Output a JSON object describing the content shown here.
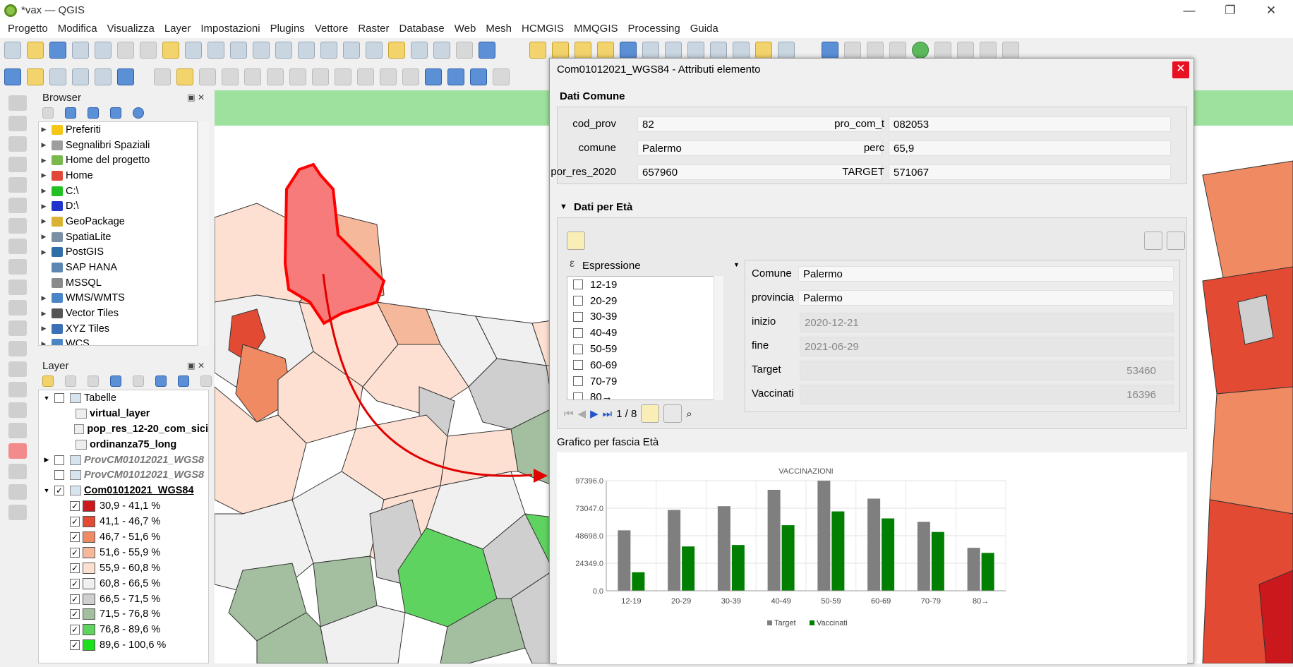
{
  "window": {
    "title": "*vax — QGIS",
    "minimize": "—",
    "restore": "❐",
    "close": "✕"
  },
  "menu": [
    "Progetto",
    "Modifica",
    "Visualizza",
    "Layer",
    "Impostazioni",
    "Plugins",
    "Vettore",
    "Raster",
    "Database",
    "Web",
    "Mesh",
    "HCMGIS",
    "MMQGIS",
    "Processing",
    "Guida"
  ],
  "browser": {
    "title": "Browser",
    "items": [
      {
        "label": "Preferiti",
        "icon": "star-icon",
        "color": "#f5c518"
      },
      {
        "label": "Segnalibri Spaziali",
        "icon": "bookmark-icon",
        "color": "#9e9e9e"
      },
      {
        "label": "Home del progetto",
        "icon": "project-home-icon",
        "color": "#79b94c"
      },
      {
        "label": "Home",
        "icon": "home-folder-icon",
        "color": "#e0493a"
      },
      {
        "label": "C:\\",
        "icon": "drive-c-icon",
        "color": "#22c022"
      },
      {
        "label": "D:\\",
        "icon": "drive-d-icon",
        "color": "#2233cc"
      },
      {
        "label": "GeoPackage",
        "icon": "geopackage-icon",
        "color": "#d9b233"
      },
      {
        "label": "SpatiaLite",
        "icon": "spatialite-icon",
        "color": "#7a8fa3"
      },
      {
        "label": "PostGIS",
        "icon": "postgis-icon",
        "color": "#2f6ea8"
      },
      {
        "label": "SAP HANA",
        "icon": "sap-hana-icon",
        "color": "#5c87b2"
      },
      {
        "label": "MSSQL",
        "icon": "mssql-icon",
        "color": "#8a8a8a"
      },
      {
        "label": "WMS/WMTS",
        "icon": "wms-icon",
        "color": "#4a86c6"
      },
      {
        "label": "Vector Tiles",
        "icon": "vector-tiles-icon",
        "color": "#555555"
      },
      {
        "label": "XYZ Tiles",
        "icon": "xyz-tiles-icon",
        "color": "#3b6fb6"
      },
      {
        "label": "WCS",
        "icon": "wcs-icon",
        "color": "#4a86c6"
      }
    ]
  },
  "layers": {
    "title": "Layer",
    "items": [
      {
        "label": "Tabelle",
        "bold": false,
        "italic": false,
        "indent": 0,
        "checked": false,
        "expander": "▼",
        "icon": "group-icon"
      },
      {
        "label": "virtual_layer",
        "bold": true,
        "italic": false,
        "indent": 1,
        "checked": null,
        "icon": "table-icon"
      },
      {
        "label": "pop_res_12-20_com_sici",
        "bold": true,
        "italic": false,
        "indent": 1,
        "checked": null,
        "icon": "table-icon"
      },
      {
        "label": "ordinanza75_long",
        "bold": true,
        "italic": false,
        "indent": 1,
        "checked": null,
        "icon": "table-icon"
      },
      {
        "label": "ProvCM01012021_WGS8",
        "bold": true,
        "italic": true,
        "indent": 0,
        "checked": false,
        "expander": "▶",
        "icon": "polygon-layer-icon"
      },
      {
        "label": "ProvCM01012021_WGS8",
        "bold": true,
        "italic": true,
        "indent": 0,
        "checked": false,
        "expander": "",
        "icon": "polygon-layer-icon"
      },
      {
        "label": "Com01012021_WGS84",
        "bold": true,
        "italic": false,
        "underline": true,
        "indent": 0,
        "checked": true,
        "expander": "▼",
        "icon": "polygon-layer-icon"
      }
    ],
    "legend": [
      {
        "label": "30,9 - 41,1 %",
        "color": "#cb181d"
      },
      {
        "label": "41,1 - 46,7 %",
        "color": "#e34a33"
      },
      {
        "label": "46,7 - 51,6 %",
        "color": "#ef8a62"
      },
      {
        "label": "51,6 - 55,9 %",
        "color": "#f6b89a"
      },
      {
        "label": "55,9 - 60,8 %",
        "color": "#fde0d2"
      },
      {
        "label": "60,8 - 66,5 %",
        "color": "#f0f0f0"
      },
      {
        "label": "66,5 - 71,5 %",
        "color": "#cfcfcf"
      },
      {
        "label": "71,5 - 76,8 %",
        "color": "#a3bfa0"
      },
      {
        "label": "76,8 - 89,6 %",
        "color": "#5fd35f"
      },
      {
        "label": "89,6 - 100,6 %",
        "color": "#1de01d"
      }
    ]
  },
  "dialog": {
    "title": "Com01012021_WGS84 - Attributi elemento",
    "close": "✕",
    "section1": "Dati Comune",
    "fields": {
      "cod_prov": {
        "label": "cod_prov",
        "value": "82"
      },
      "pro_com_t": {
        "label": "pro_com_t",
        "value": "082053"
      },
      "comune": {
        "label": "comune",
        "value": "Palermo"
      },
      "perc": {
        "label": "perc",
        "value": "65,9"
      },
      "por_res_2020": {
        "label": "por_res_2020",
        "value": "657960"
      },
      "TARGET": {
        "label": "TARGET",
        "value": "571067"
      }
    },
    "section2": "Dati per Età",
    "expression_label": "Espressione",
    "ages": [
      "12-19",
      "20-29",
      "30-39",
      "40-49",
      "50-59",
      "60-69",
      "70-79",
      "80→"
    ],
    "nav": {
      "counter": "1 / 8"
    },
    "child_fields": {
      "Comune": {
        "label": "Comune",
        "value": "Palermo"
      },
      "provincia": {
        "label": "provincia",
        "value": "Palermo"
      },
      "inizio": {
        "label": "inizio",
        "value": "2020-12-21"
      },
      "fine": {
        "label": "fine",
        "value": "2021-06-29"
      },
      "Target": {
        "label": "Target",
        "value": "53460"
      },
      "Vaccinati": {
        "label": "Vaccinati",
        "value": "16396"
      }
    },
    "section3": "Grafico per fascia Età"
  },
  "chart_data": {
    "type": "bar",
    "title": "VACCINAZIONI",
    "categories": [
      "12-19",
      "20-29",
      "30-39",
      "40-49",
      "50-59",
      "60-69",
      "70-79",
      "80→"
    ],
    "series": [
      {
        "name": "Target",
        "color": "#7f7f7f",
        "values": [
          53460,
          71500,
          74800,
          89300,
          97396,
          81500,
          61000,
          38000
        ]
      },
      {
        "name": "Vaccinati",
        "color": "#007f00",
        "values": [
          16396,
          39200,
          40500,
          58000,
          70200,
          64000,
          52000,
          33500
        ]
      }
    ],
    "yticks": [
      "0.0",
      "24349.0",
      "48698.0",
      "73047.0",
      "97396.0"
    ],
    "ylim": [
      0,
      97396
    ],
    "legend_position": "bottom",
    "grid": true
  }
}
